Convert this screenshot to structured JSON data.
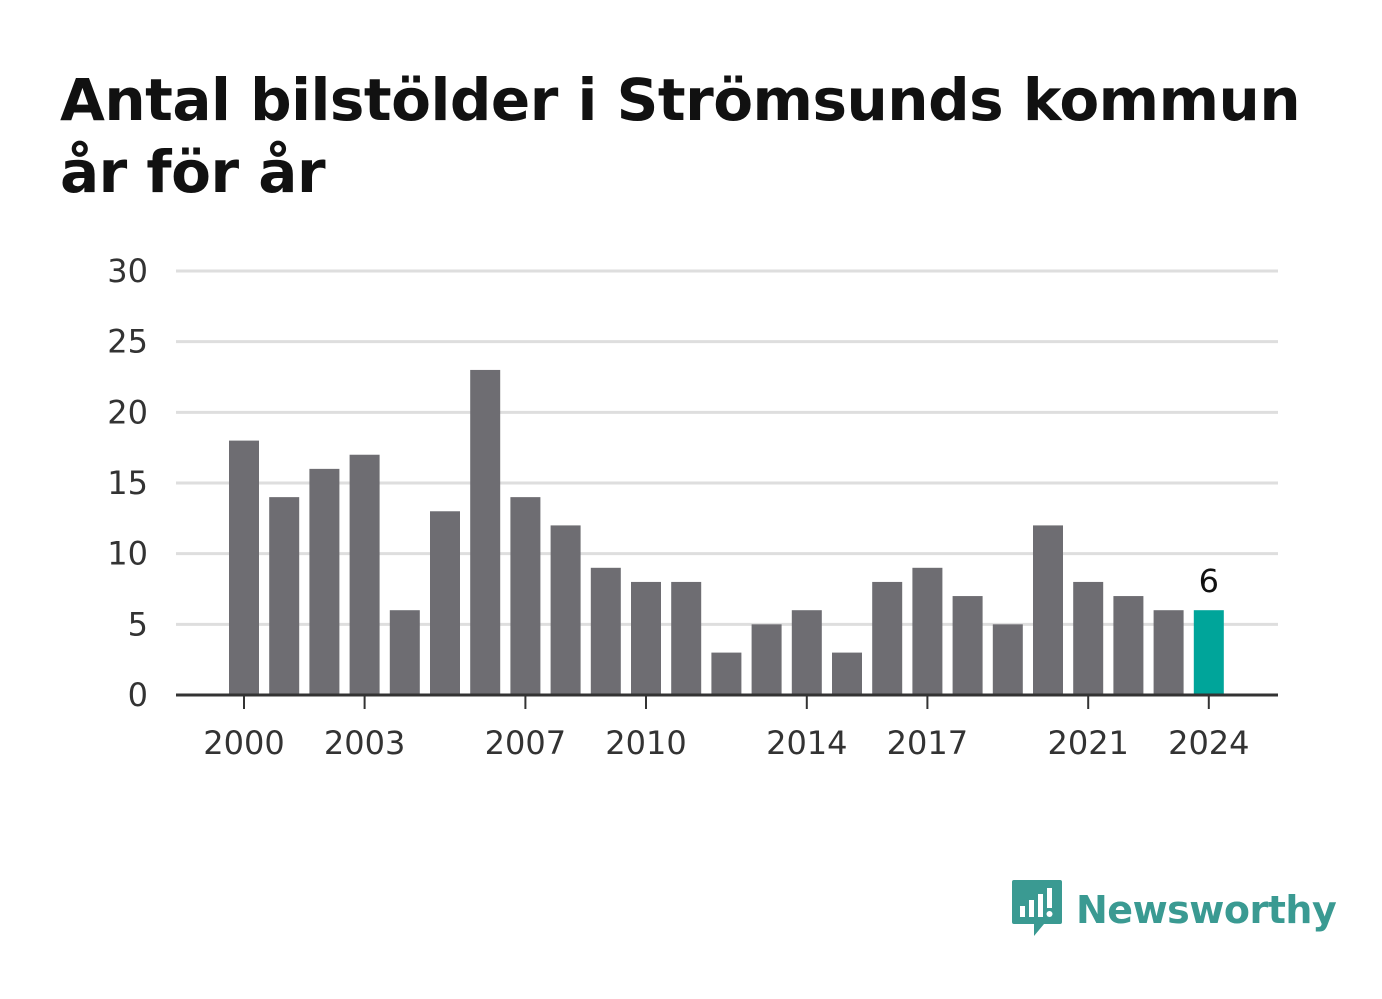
{
  "title": "Antal bilstölder i Strömsunds kommun år för år",
  "brand": {
    "name": "Newsworthy",
    "icon": "newsworthy-logo-icon",
    "color": "#3a9a92"
  },
  "colors": {
    "bar": "#6e6d72",
    "highlight": "#00a59a",
    "grid": "#dedede",
    "axis": "#333333"
  },
  "chart_data": {
    "type": "bar",
    "title": "Antal bilstölder i Strömsunds kommun år för år",
    "xlabel": "",
    "ylabel": "",
    "categories": [
      "2000",
      "2001",
      "2002",
      "2003",
      "2004",
      "2005",
      "2006",
      "2007",
      "2008",
      "2009",
      "2010",
      "2011",
      "2012",
      "2013",
      "2014",
      "2015",
      "2016",
      "2017",
      "2018",
      "2019",
      "2020",
      "2021",
      "2022",
      "2023",
      "2024"
    ],
    "values": [
      18,
      14,
      16,
      17,
      6,
      13,
      23,
      14,
      12,
      9,
      8,
      8,
      3,
      5,
      6,
      3,
      8,
      9,
      7,
      5,
      12,
      8,
      7,
      6,
      6
    ],
    "x_tick_labels": [
      "2000",
      "2003",
      "2007",
      "2010",
      "2014",
      "2017",
      "2021",
      "2024"
    ],
    "y_ticks": [
      0,
      5,
      10,
      15,
      20,
      25,
      30
    ],
    "ylim": [
      0,
      30
    ],
    "grid": true,
    "legend": "none",
    "highlight": {
      "category": "2024",
      "label": "6"
    }
  }
}
